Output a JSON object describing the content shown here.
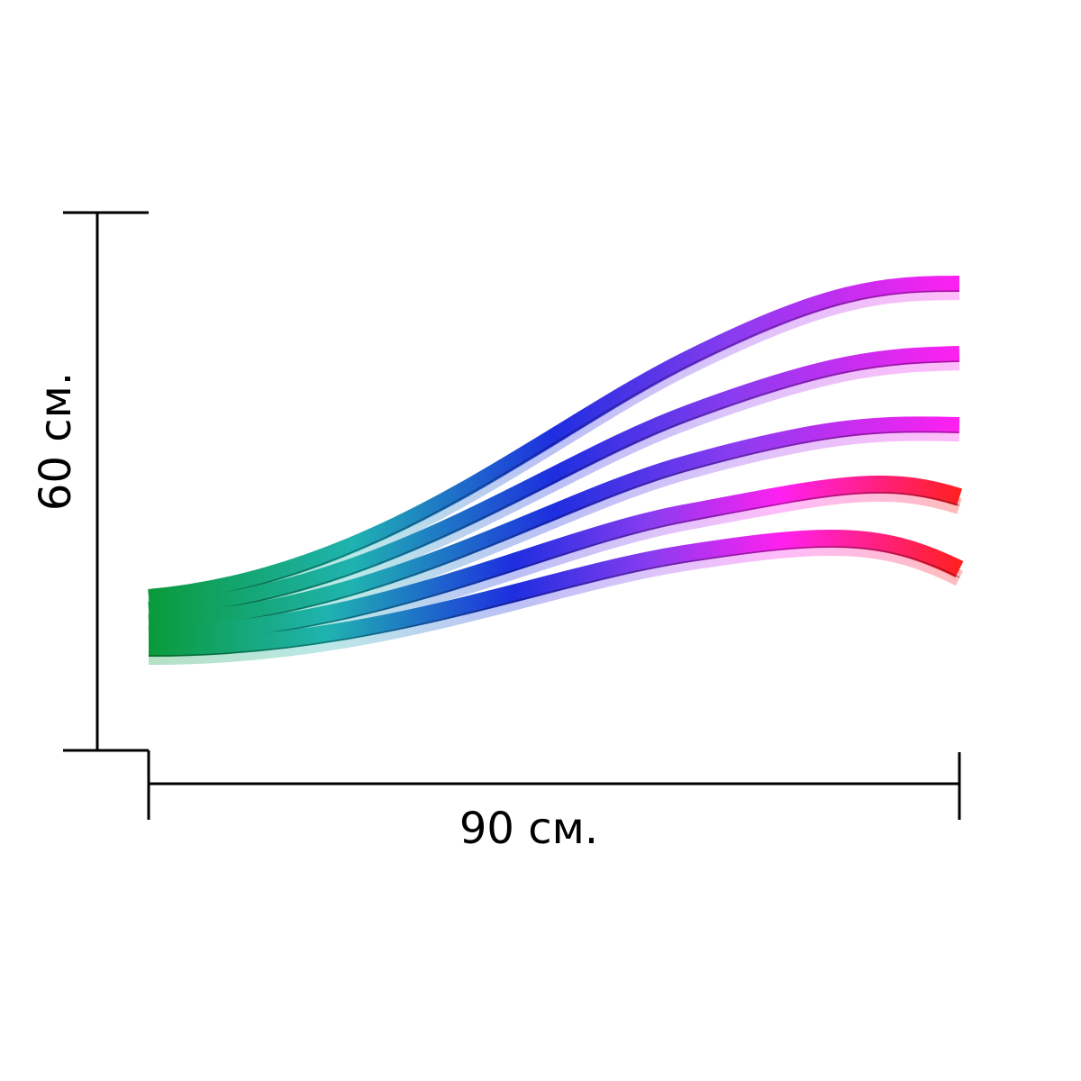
{
  "dimensions": {
    "height_label": "60 см.",
    "width_label": "90 см."
  },
  "artwork": {
    "description_type": "decorative-gradient-waves",
    "wave_count": 5,
    "colors": {
      "start": "#0a9a3a",
      "teal": "#1fb3b0",
      "blue": "#1e2ee0",
      "violet": "#8a3cf0",
      "magenta": "#ff20f0",
      "red": "#ff2020",
      "line": "#000000"
    }
  }
}
